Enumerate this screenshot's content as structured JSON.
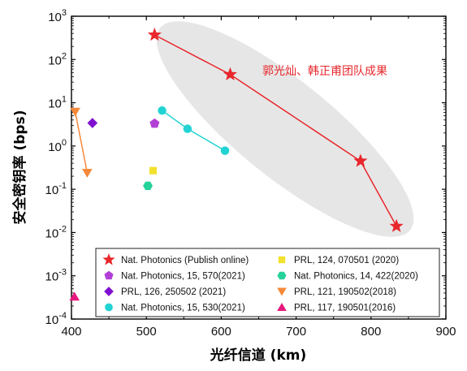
{
  "chart_data": {
    "type": "scatter",
    "xlabel": "光纤信道 (km)",
    "ylabel": "安全密钥率 (bps)",
    "xlim": [
      400,
      900
    ],
    "ylim_log10": [
      -4,
      3
    ],
    "y_scale": "log",
    "x_ticks": [
      "400",
      "500",
      "600",
      "700",
      "800",
      "900"
    ],
    "y_ticks": [
      {
        "base": "10",
        "exp": "-4",
        "value": 0.0001
      },
      {
        "base": "10",
        "exp": "-3",
        "value": 0.001
      },
      {
        "base": "10",
        "exp": "-2",
        "value": 0.01
      },
      {
        "base": "10",
        "exp": "-1",
        "value": 0.1
      },
      {
        "base": "10",
        "exp": "0",
        "value": 1
      },
      {
        "base": "10",
        "exp": "1",
        "value": 10
      },
      {
        "base": "10",
        "exp": "2",
        "value": 100
      },
      {
        "base": "10",
        "exp": "3",
        "value": 1000
      }
    ],
    "annotation": {
      "text": "郭光灿、韩正甫团队成果",
      "color": "#e8262b"
    },
    "highlight_ellipse": {
      "fill": "#e6e6e6"
    },
    "legend_position": "bottom-center",
    "series": [
      {
        "name": "Nat. Photonics (Publish online)",
        "marker": "star",
        "color": "#e8262b",
        "line": true,
        "points": [
          [
            511,
            370
          ],
          [
            612,
            45
          ],
          [
            786,
            0.45
          ],
          [
            834,
            0.014
          ]
        ]
      },
      {
        "name": "Nat. Photonics, 15, 570(2021)",
        "marker": "pentagon",
        "color": "#b23fd6",
        "line": false,
        "points": [
          [
            511,
            3.3
          ]
        ]
      },
      {
        "name": "PRL, 126, 250502 (2021)",
        "marker": "diamond",
        "color": "#7f10d0",
        "line": false,
        "points": [
          [
            428,
            3.4
          ]
        ]
      },
      {
        "name": "Nat. Photonics, 15, 530(2021)",
        "marker": "circle",
        "color": "#22d3d3",
        "line": true,
        "points": [
          [
            521,
            6.6
          ],
          [
            555,
            2.5
          ],
          [
            605,
            0.78
          ]
        ]
      },
      {
        "name": "PRL, 124, 070501 (2020)",
        "marker": "square",
        "color": "#f2e12d",
        "line": false,
        "points": [
          [
            509,
            0.27
          ]
        ]
      },
      {
        "name": "Nat. Photonics, 14, 422(2020)",
        "marker": "hexagon",
        "color": "#27d29a",
        "line": false,
        "points": [
          [
            502,
            0.12
          ]
        ]
      },
      {
        "name": "PRL, 121, 190502(2018)",
        "marker": "triangle-down",
        "color": "#f5883a",
        "line": true,
        "points": [
          [
            405,
            6.2
          ],
          [
            421,
            0.24
          ]
        ]
      },
      {
        "name": "PRL, 117, 190501(2016)",
        "marker": "triangle-up",
        "color": "#e6187b",
        "line": false,
        "points": [
          [
            404,
            0.00033
          ]
        ]
      }
    ]
  }
}
